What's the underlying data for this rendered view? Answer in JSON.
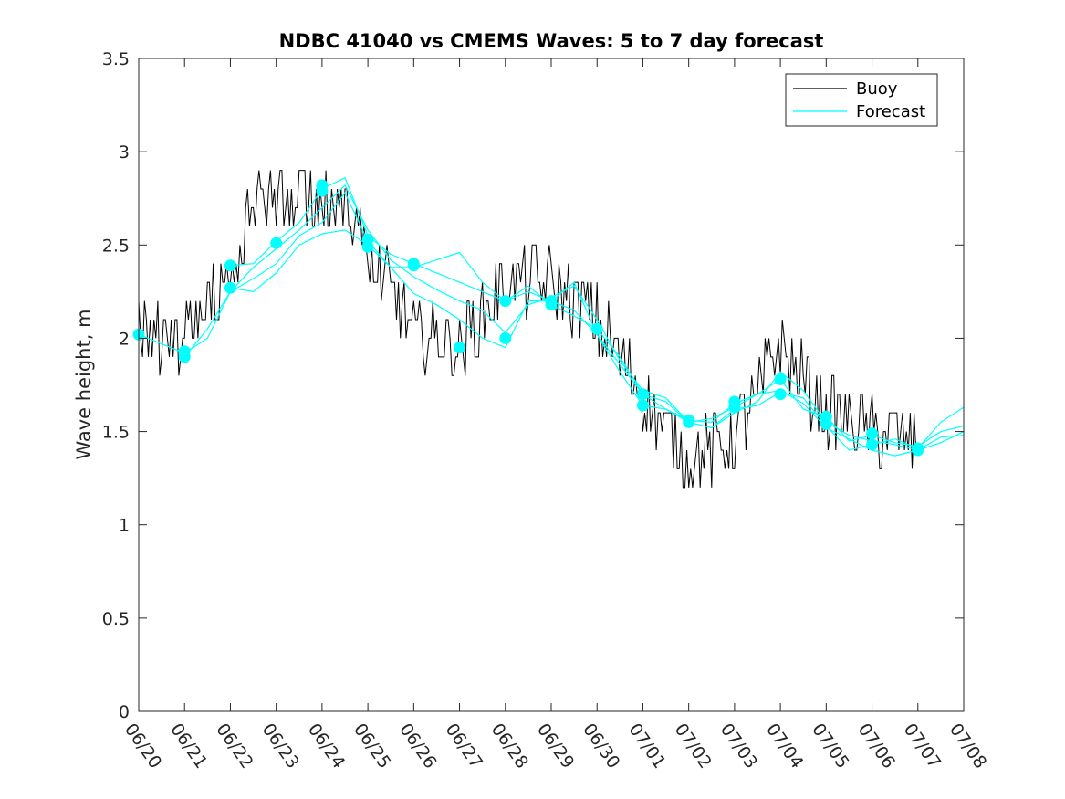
{
  "chart_data": {
    "type": "line",
    "title": "NDBC 41040 vs CMEMS Waves: 5 to 7 day forecast",
    "xlabel": "",
    "ylabel": "Wave height, m",
    "xlim": [
      "06/20",
      "07/08"
    ],
    "ylim": [
      0,
      3.5
    ],
    "x_tick_labels": [
      "06/20",
      "06/21",
      "06/22",
      "06/23",
      "06/24",
      "06/25",
      "06/26",
      "06/27",
      "06/28",
      "06/29",
      "06/30",
      "07/01",
      "07/02",
      "07/03",
      "07/04",
      "07/05",
      "07/06",
      "07/07",
      "07/08"
    ],
    "y_tick_labels": [
      "0",
      "0.5",
      "1",
      "1.5",
      "2",
      "2.5",
      "3",
      "3.5"
    ],
    "y_ticks": [
      0,
      0.5,
      1,
      1.5,
      2,
      2.5,
      3,
      3.5
    ],
    "grid": false,
    "legend_position": "top-right",
    "colors": {
      "buoy": "#000000",
      "forecast": "#00ffff",
      "axes": "#262626"
    },
    "series": [
      {
        "name": "Buoy",
        "color": "#000000",
        "x": [
          "06/20",
          "06/21",
          "06/22",
          "06/22 12:00",
          "06/23",
          "06/24",
          "06/24 12:00",
          "06/25",
          "06/26",
          "06/27",
          "06/28",
          "06/29",
          "06/30",
          "07/01",
          "07/02",
          "07/03",
          "07/04",
          "07/05",
          "07/06",
          "07/07"
        ],
        "y": [
          2.0,
          2.0,
          2.3,
          2.75,
          2.8,
          2.7,
          2.8,
          2.45,
          2.05,
          1.95,
          2.3,
          2.3,
          2.1,
          1.7,
          1.35,
          1.45,
          1.95,
          1.6,
          1.5,
          1.45
        ]
      },
      {
        "name": "Forecast",
        "color": "#00ffff",
        "x": [
          "06/20",
          "06/21",
          "06/22",
          "06/23",
          "06/24",
          "06/25",
          "06/26",
          "06/27",
          "06/28",
          "06/29",
          "06/30",
          "07/01",
          "07/02",
          "07/03",
          "07/04",
          "07/05",
          "07/06",
          "07/07",
          "07/08"
        ],
        "y": [
          2.02,
          1.95,
          2.2,
          2.45,
          2.6,
          2.5,
          2.3,
          2.15,
          2.05,
          2.2,
          2.05,
          1.75,
          1.58,
          1.62,
          1.8,
          1.55,
          1.45,
          1.45,
          1.52
        ]
      }
    ],
    "forecast_runs": [
      {
        "x": [
          "06/20",
          "06/20 12:00",
          "06/21",
          "06/21 12:00",
          "06/22",
          "06/22 12:00",
          "06/23",
          "06/23 12:00",
          "06/24",
          "06/24 12:00",
          "06/25",
          "06/25 12:00",
          "06/26",
          "06/26 12:00",
          "06/27",
          "06/27 12:00",
          "06/28",
          "06/28 12:00",
          "06/29",
          "06/29 12:00",
          "06/30",
          "06/30 12:00",
          "07/01",
          "07/01 12:00",
          "07/02",
          "07/02 12:00",
          "07/03",
          "07/03 12:00",
          "07/04",
          "07/04 12:00",
          "07/05",
          "07/05 12:00",
          "07/06",
          "07/06 12:00",
          "07/07",
          "07/07 12:00",
          "07/08"
        ],
        "y": [
          2.02,
          1.97,
          1.92,
          2.0,
          2.25,
          2.38,
          2.48,
          2.58,
          2.7,
          2.82,
          2.58,
          2.42,
          2.33,
          2.26,
          2.2,
          2.15,
          2.03,
          2.18,
          2.22,
          2.28,
          2.1,
          1.88,
          1.72,
          1.68,
          1.55,
          1.52,
          1.6,
          1.66,
          1.82,
          1.72,
          1.55,
          1.48,
          1.45,
          1.43,
          1.4,
          1.44,
          1.5
        ]
      },
      {
        "x": [
          "06/21",
          "06/21 12:00",
          "06/22",
          "06/22 12:00",
          "06/23",
          "06/23 12:00",
          "06/24",
          "06/24 12:00",
          "06/25",
          "06/25 12:00",
          "06/26",
          "06/26 12:00",
          "06/27",
          "06/27 12:00",
          "06/28",
          "06/28 12:00",
          "06/29",
          "06/29 12:00",
          "06/30",
          "06/30 12:00",
          "07/01",
          "07/01 12:00",
          "07/02",
          "07/02 12:00",
          "07/03",
          "07/03 12:00",
          "07/04",
          "07/04 12:00",
          "07/05",
          "07/05 12:00",
          "07/06",
          "07/06 12:00",
          "07/07",
          "07/07 12:00",
          "07/08"
        ],
        "y": [
          1.9,
          2.05,
          2.25,
          2.32,
          2.4,
          2.55,
          2.62,
          2.78,
          2.52,
          2.38,
          2.24,
          2.18,
          2.1,
          2.0,
          1.95,
          2.2,
          2.2,
          2.3,
          2.02,
          1.82,
          1.64,
          1.62,
          1.55,
          1.57,
          1.63,
          1.7,
          1.72,
          1.65,
          1.52,
          1.46,
          1.4,
          1.37,
          1.4,
          1.47,
          1.48
        ]
      },
      {
        "x": [
          "06/22",
          "06/22 12:00",
          "06/23",
          "06/23 12:00",
          "06/24",
          "06/24 12:00",
          "06/25",
          "06/25 12:00",
          "06/26",
          "06/26 12:00",
          "06/27",
          "06/27 12:00",
          "06/28",
          "06/28 12:00",
          "06/29",
          "06/29 12:00",
          "06/30",
          "06/30 12:00",
          "07/01",
          "07/01 12:00",
          "07/02",
          "07/02 12:00",
          "07/03",
          "07/03 12:00",
          "07/04",
          "07/04 12:00",
          "07/05",
          "07/05 12:00",
          "07/06",
          "07/06 12:00",
          "07/07",
          "07/07 12:00",
          "07/08"
        ],
        "y": [
          2.39,
          2.4,
          2.52,
          2.62,
          2.8,
          2.86,
          2.55,
          2.45,
          2.4,
          2.35,
          2.3,
          2.25,
          2.2,
          2.28,
          2.18,
          2.12,
          2.05,
          1.9,
          1.7,
          1.62,
          1.56,
          1.55,
          1.65,
          1.7,
          1.78,
          1.62,
          1.58,
          1.45,
          1.48,
          1.44,
          1.42,
          1.5,
          1.53
        ]
      },
      {
        "x": [
          "06/22",
          "06/22 12:00",
          "06/23",
          "06/23 12:00",
          "06/24",
          "06/24 12:00",
          "06/25",
          "06/25 12:00",
          "06/26",
          "06/26 12:00",
          "06/27",
          "06/27 12:00",
          "06/28",
          "06/28 12:00",
          "06/29",
          "06/29 12:00",
          "06/30",
          "06/30 12:00",
          "07/01",
          "07/01 12:00",
          "07/02",
          "07/02 12:00",
          "07/03",
          "07/03 12:00",
          "07/04",
          "07/04 12:00",
          "07/05",
          "07/05 12:00",
          "07/06",
          "07/06 12:00",
          "07/07",
          "07/07 12:00",
          "07/08"
        ],
        "y": [
          2.27,
          2.25,
          2.35,
          2.5,
          2.56,
          2.58,
          2.5,
          2.38,
          2.38,
          2.42,
          2.46,
          2.3,
          2.2,
          2.25,
          2.2,
          2.15,
          2.02,
          1.86,
          1.7,
          1.66,
          1.55,
          1.52,
          1.62,
          1.64,
          1.71,
          1.68,
          1.53,
          1.4,
          1.43,
          1.46,
          1.41,
          1.55,
          1.63
        ]
      }
    ],
    "forecast_markers": [
      {
        "x": "06/20",
        "y": 2.02
      },
      {
        "x": "06/21",
        "y": 1.93
      },
      {
        "x": "06/21",
        "y": 1.9
      },
      {
        "x": "06/22",
        "y": 2.39
      },
      {
        "x": "06/22",
        "y": 2.27
      },
      {
        "x": "06/23",
        "y": 2.51
      },
      {
        "x": "06/24",
        "y": 2.82
      },
      {
        "x": "06/24",
        "y": 2.79
      },
      {
        "x": "06/25",
        "y": 2.53
      },
      {
        "x": "06/25",
        "y": 2.49
      },
      {
        "x": "06/26",
        "y": 2.4
      },
      {
        "x": "06/26",
        "y": 2.39
      },
      {
        "x": "06/27",
        "y": 1.95
      },
      {
        "x": "06/28",
        "y": 2.2
      },
      {
        "x": "06/28",
        "y": 2.0
      },
      {
        "x": "06/29",
        "y": 2.2
      },
      {
        "x": "06/29",
        "y": 2.18
      },
      {
        "x": "06/30",
        "y": 2.05
      },
      {
        "x": "07/01",
        "y": 1.7
      },
      {
        "x": "07/01",
        "y": 1.64
      },
      {
        "x": "07/02",
        "y": 1.56
      },
      {
        "x": "07/02",
        "y": 1.55
      },
      {
        "x": "07/03",
        "y": 1.66
      },
      {
        "x": "07/03",
        "y": 1.63
      },
      {
        "x": "07/04",
        "y": 1.78
      },
      {
        "x": "07/04",
        "y": 1.7
      },
      {
        "x": "07/05",
        "y": 1.58
      },
      {
        "x": "07/05",
        "y": 1.54
      },
      {
        "x": "07/06",
        "y": 1.49
      },
      {
        "x": "07/06",
        "y": 1.43
      },
      {
        "x": "07/07",
        "y": 1.41
      },
      {
        "x": "07/07",
        "y": 1.4
      }
    ]
  }
}
